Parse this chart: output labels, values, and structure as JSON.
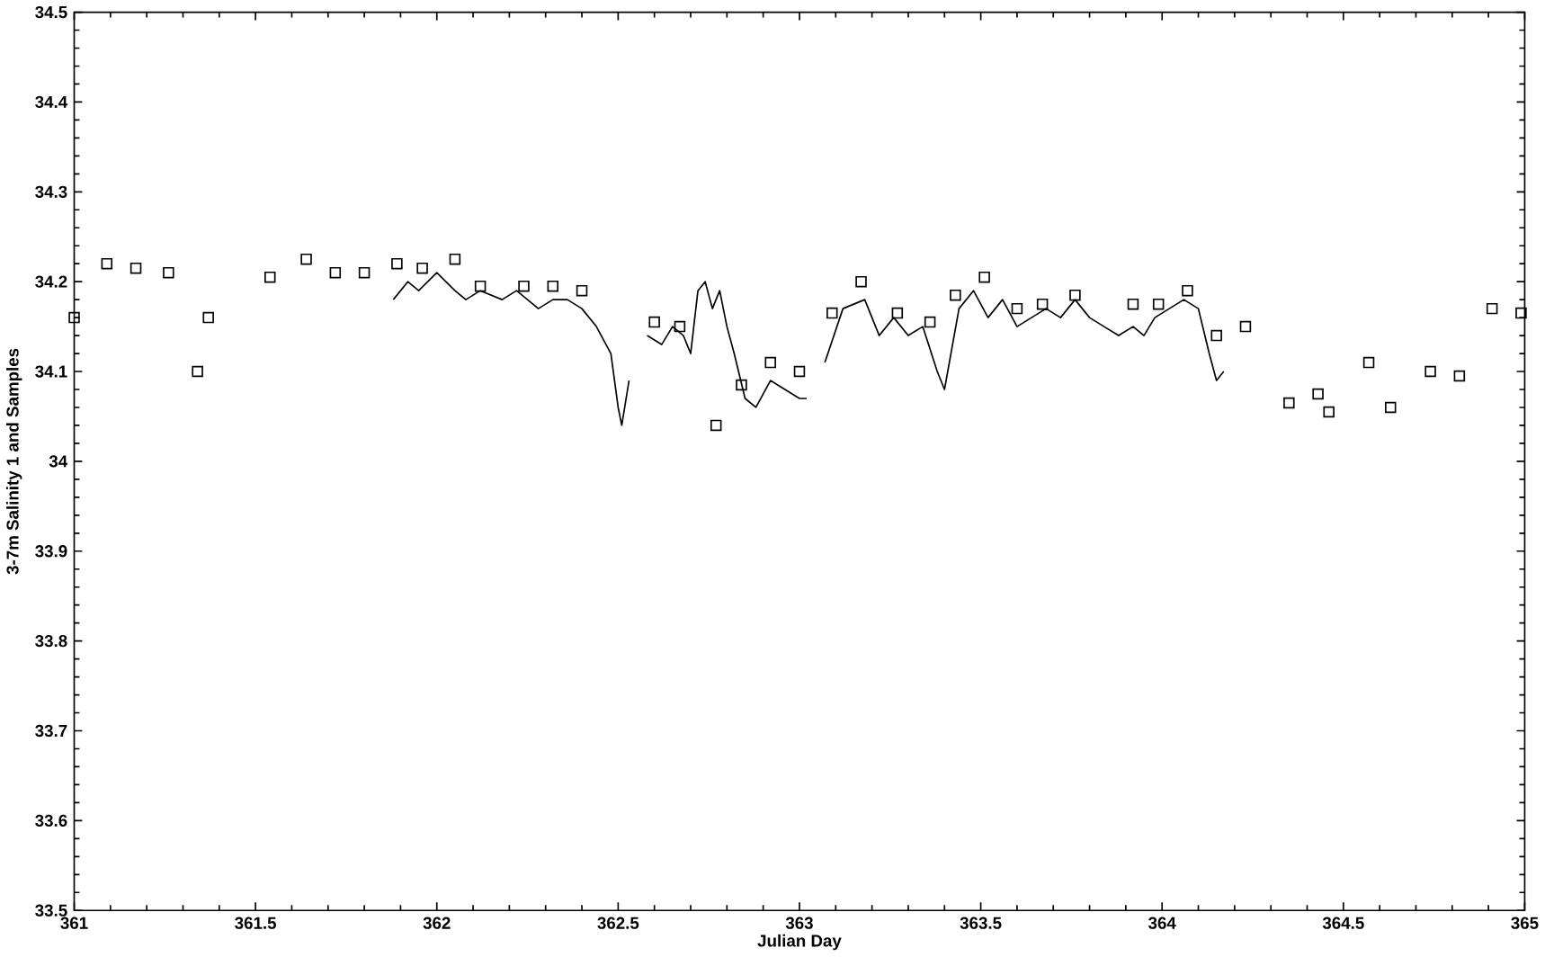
{
  "chart_data": {
    "type": "line",
    "xlabel": "Julian Day",
    "ylabel": "3-7m Salinity 1 and Samples",
    "xlim": [
      361,
      365
    ],
    "ylim": [
      33.5,
      34.5
    ],
    "xticks": [
      361,
      361.5,
      362,
      362.5,
      363,
      363.5,
      364,
      364.5,
      365
    ],
    "yticks": [
      33.5,
      33.6,
      33.7,
      33.8,
      33.9,
      34,
      34.1,
      34.2,
      34.3,
      34.4,
      34.5
    ],
    "grid": false,
    "series": [
      {
        "color": "#000000",
        "marker": "none",
        "line_style": "solid",
        "x": [
          361.88,
          361.92,
          361.95,
          362.0,
          362.05,
          362.08,
          362.12,
          362.18,
          362.22,
          362.28,
          362.32,
          362.36,
          362.4,
          362.44,
          362.48,
          362.5,
          362.51,
          362.53,
          362.55,
          362.58,
          362.62,
          362.65,
          362.68,
          362.7,
          362.72,
          362.74,
          362.76,
          362.78,
          362.8,
          362.82,
          362.85,
          362.88,
          362.92,
          362.96,
          363.0,
          363.02,
          363.05,
          363.07,
          363.12,
          363.18,
          363.22,
          363.26,
          363.3,
          363.34,
          363.38,
          363.4,
          363.44,
          363.48,
          363.52,
          363.56,
          363.6,
          363.64,
          363.68,
          363.72,
          363.76,
          363.8,
          363.84,
          363.88,
          363.92,
          363.95,
          363.98,
          364.02,
          364.06,
          364.1,
          364.13,
          364.15,
          364.17
        ],
        "values": [
          34.18,
          34.2,
          34.19,
          34.21,
          34.19,
          34.18,
          34.19,
          34.18,
          34.19,
          34.17,
          34.18,
          34.18,
          34.17,
          34.15,
          34.12,
          34.06,
          34.04,
          34.09,
          null,
          34.14,
          34.13,
          34.15,
          34.14,
          34.12,
          34.19,
          34.2,
          34.17,
          34.19,
          34.15,
          34.12,
          34.07,
          34.06,
          34.09,
          34.08,
          34.07,
          34.07,
          null,
          34.11,
          34.17,
          34.18,
          34.14,
          34.16,
          34.14,
          34.15,
          34.1,
          34.08,
          34.17,
          34.19,
          34.16,
          34.18,
          34.15,
          34.16,
          34.17,
          34.16,
          34.18,
          34.16,
          34.15,
          34.14,
          34.15,
          34.14,
          34.16,
          34.17,
          34.18,
          34.17,
          34.12,
          34.09,
          34.1
        ]
      },
      {
        "type": "scatter",
        "color": "#000000",
        "marker": "square",
        "x": [
          361.0,
          361.09,
          361.17,
          361.26,
          361.34,
          361.37,
          361.54,
          361.64,
          361.72,
          361.8,
          361.89,
          361.96,
          362.05,
          362.12,
          362.24,
          362.32,
          362.4,
          362.6,
          362.67,
          362.77,
          362.84,
          362.92,
          363.0,
          363.09,
          363.17,
          363.27,
          363.36,
          363.43,
          363.51,
          363.6,
          363.67,
          363.76,
          363.92,
          363.99,
          364.07,
          364.15,
          364.23,
          364.35,
          364.43,
          364.46,
          364.57,
          364.63,
          364.74,
          364.82,
          364.91,
          364.99
        ],
        "values": [
          34.16,
          34.22,
          34.215,
          34.21,
          34.1,
          34.16,
          34.205,
          34.225,
          34.21,
          34.21,
          34.22,
          34.215,
          34.225,
          34.195,
          34.195,
          34.195,
          34.19,
          34.155,
          34.15,
          34.04,
          34.085,
          34.11,
          34.1,
          34.165,
          34.2,
          34.165,
          34.155,
          34.185,
          34.205,
          34.17,
          34.175,
          34.185,
          34.175,
          34.175,
          34.19,
          34.14,
          34.15,
          34.065,
          34.075,
          34.055,
          34.11,
          34.06,
          34.1,
          34.095,
          34.17,
          34.165
        ]
      }
    ]
  }
}
